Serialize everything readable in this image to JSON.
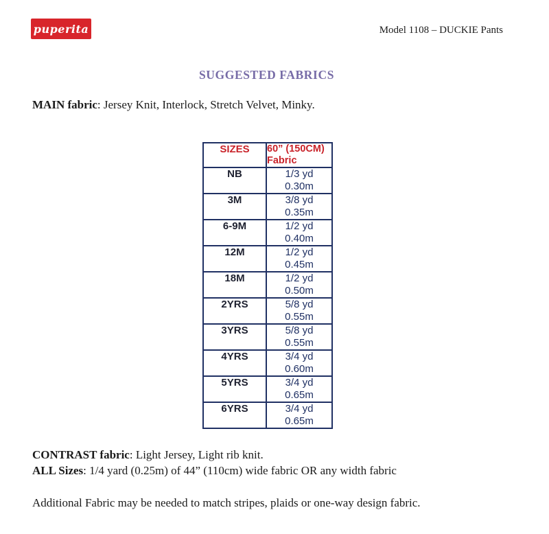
{
  "header": {
    "logo_text": "puperita",
    "model_label": "Model 1108 – DUCKIE Pants"
  },
  "title": "SUGGESTED FABRICS",
  "main_fabric": {
    "label": "MAIN fabric",
    "text": ": Jersey Knit, Interlock, Stretch Velvet, Minky."
  },
  "table": {
    "headers": {
      "sizes": "SIZES",
      "fabric_line1": "60” (150CM)",
      "fabric_line2": "Fabric"
    },
    "rows": [
      {
        "size": "NB",
        "yd": "1/3 yd",
        "m": "0.30m"
      },
      {
        "size": "3M",
        "yd": "3/8 yd",
        "m": "0.35m"
      },
      {
        "size": "6-9M",
        "yd": "1/2 yd",
        "m": "0.40m"
      },
      {
        "size": "12M",
        "yd": "1/2 yd",
        "m": "0.45m"
      },
      {
        "size": "18M",
        "yd": "1/2 yd",
        "m": "0.50m"
      },
      {
        "size": "2YRS",
        "yd": "5/8 yd",
        "m": "0.55m"
      },
      {
        "size": "3YRS",
        "yd": "5/8 yd",
        "m": "0.55m"
      },
      {
        "size": "4YRS",
        "yd": "3/4 yd",
        "m": "0.60m"
      },
      {
        "size": "5YRS",
        "yd": "3/4 yd",
        "m": "0.65m"
      },
      {
        "size": "6YRS",
        "yd": "3/4 yd",
        "m": "0.65m"
      }
    ]
  },
  "contrast": {
    "label": "CONTRAST fabric",
    "text": ": Light Jersey, Light rib knit."
  },
  "all_sizes": {
    "label": "ALL Sizes",
    "text": ": 1/4 yard (0.25m) of 44” (110cm) wide fabric OR any width fabric"
  },
  "note": "Additional Fabric may be needed to match stripes, plaids or one-way design fabric.",
  "colors": {
    "logo_red": "#d8252b",
    "table_header_red": "#c9232a",
    "table_border_navy": "#1f3063",
    "table_value_navy": "#1f3063",
    "title_purple": "#776ca7",
    "body_text": "#1b1b1b"
  }
}
